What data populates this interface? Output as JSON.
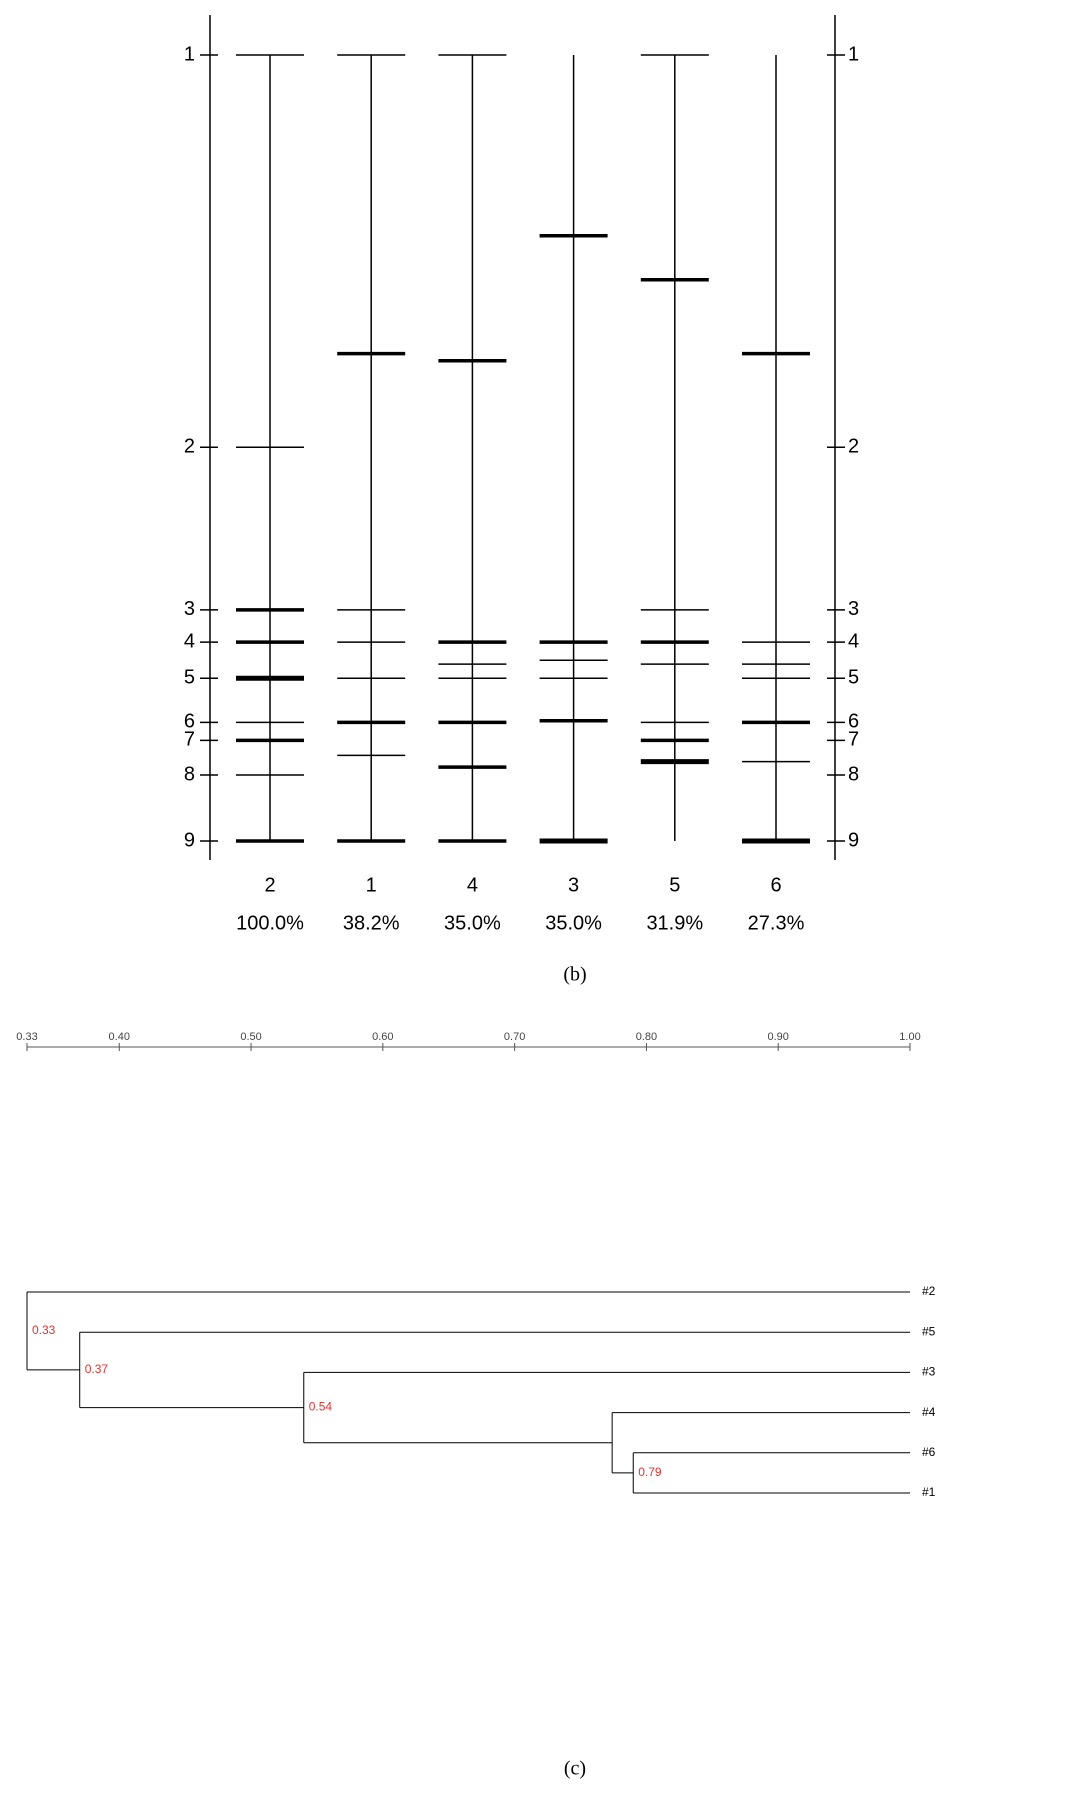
{
  "gel": {
    "markers": [
      {
        "label": "1",
        "position": 0
      },
      {
        "label": "2",
        "position": 49.9
      },
      {
        "label": "3",
        "position": 70.6
      },
      {
        "label": "4",
        "position": 74.7
      },
      {
        "label": "5",
        "position": 79.3
      },
      {
        "label": "6",
        "position": 84.9
      },
      {
        "label": "7",
        "position": 87.2
      },
      {
        "label": "8",
        "position": 91.6
      },
      {
        "label": "9",
        "position": 100
      }
    ],
    "lanes": [
      {
        "name": "2",
        "score": "100.0%",
        "bands": [
          {
            "position": 0,
            "intensity": 1
          },
          {
            "position": 49.9,
            "intensity": 1
          },
          {
            "position": 70.6,
            "intensity": 2
          },
          {
            "position": 74.7,
            "intensity": 2
          },
          {
            "position": 79.3,
            "intensity": 3
          },
          {
            "position": 84.9,
            "intensity": 1
          },
          {
            "position": 87.2,
            "intensity": 2
          },
          {
            "position": 91.6,
            "intensity": 1
          },
          {
            "position": 100,
            "intensity": 2
          }
        ]
      },
      {
        "name": "1",
        "score": "38.2%",
        "bands": [
          {
            "position": 0,
            "intensity": 1
          },
          {
            "position": 38.0,
            "intensity": 2
          },
          {
            "position": 70.6,
            "intensity": 1
          },
          {
            "position": 74.7,
            "intensity": 1
          },
          {
            "position": 79.3,
            "intensity": 1
          },
          {
            "position": 84.9,
            "intensity": 2
          },
          {
            "position": 89.1,
            "intensity": 1
          },
          {
            "position": 100,
            "intensity": 2
          }
        ]
      },
      {
        "name": "4",
        "score": "35.0%",
        "bands": [
          {
            "position": 0,
            "intensity": 1
          },
          {
            "position": 38.9,
            "intensity": 2
          },
          {
            "position": 74.7,
            "intensity": 2
          },
          {
            "position": 77.5,
            "intensity": 1
          },
          {
            "position": 79.3,
            "intensity": 1
          },
          {
            "position": 84.9,
            "intensity": 2
          },
          {
            "position": 90.6,
            "intensity": 2
          },
          {
            "position": 100,
            "intensity": 2
          }
        ]
      },
      {
        "name": "3",
        "score": "35.0%",
        "bands": [
          {
            "position": 23.0,
            "intensity": 2
          },
          {
            "position": 74.7,
            "intensity": 2
          },
          {
            "position": 77.0,
            "intensity": 1
          },
          {
            "position": 79.3,
            "intensity": 1
          },
          {
            "position": 84.7,
            "intensity": 2
          },
          {
            "position": 100,
            "intensity": 3
          }
        ]
      },
      {
        "name": "5",
        "score": "31.9%",
        "bands": [
          {
            "position": 0,
            "intensity": 1
          },
          {
            "position": 28.6,
            "intensity": 2
          },
          {
            "position": 70.6,
            "intensity": 1
          },
          {
            "position": 74.7,
            "intensity": 2
          },
          {
            "position": 77.5,
            "intensity": 1
          },
          {
            "position": 84.9,
            "intensity": 1
          },
          {
            "position": 87.2,
            "intensity": 2
          },
          {
            "position": 89.9,
            "intensity": 3
          }
        ]
      },
      {
        "name": "6",
        "score": "27.3%",
        "bands": [
          {
            "position": 38.0,
            "intensity": 2
          },
          {
            "position": 74.7,
            "intensity": 1
          },
          {
            "position": 77.5,
            "intensity": 1
          },
          {
            "position": 79.3,
            "intensity": 1
          },
          {
            "position": 84.9,
            "intensity": 2
          },
          {
            "position": 89.9,
            "intensity": 1
          },
          {
            "position": 100,
            "intensity": 3
          }
        ]
      }
    ],
    "caption": "(b)"
  },
  "dendrogram": {
    "axis_ticks": [
      {
        "value": 0.33,
        "label": "0.33"
      },
      {
        "value": 0.4,
        "label": "0.40"
      },
      {
        "value": 0.5,
        "label": "0.50"
      },
      {
        "value": 0.6,
        "label": "0.60"
      },
      {
        "value": 0.7,
        "label": "0.70"
      },
      {
        "value": 0.8,
        "label": "0.80"
      },
      {
        "value": 0.9,
        "label": "0.90"
      },
      {
        "value": 1,
        "label": "1.00"
      }
    ],
    "tree": {
      "height": 0.33,
      "label": "0.33",
      "children": [
        {
          "leaf": "#2"
        },
        {
          "height": 0.37,
          "label": "0.37",
          "children": [
            {
              "leaf": "#5"
            },
            {
              "height": 0.54,
              "label": "0.54",
              "children": [
                {
                  "leaf": "#3"
                },
                {
                  "height": 0.774,
                  "children": [
                    {
                      "leaf": "#4"
                    },
                    {
                      "height": 0.79,
                      "label": "0.79",
                      "children": [
                        {
                          "leaf": "#6"
                        },
                        {
                          "leaf": "#1"
                        }
                      ]
                    }
                  ]
                }
              ]
            }
          ]
        }
      ]
    },
    "caption": "(c)"
  }
}
